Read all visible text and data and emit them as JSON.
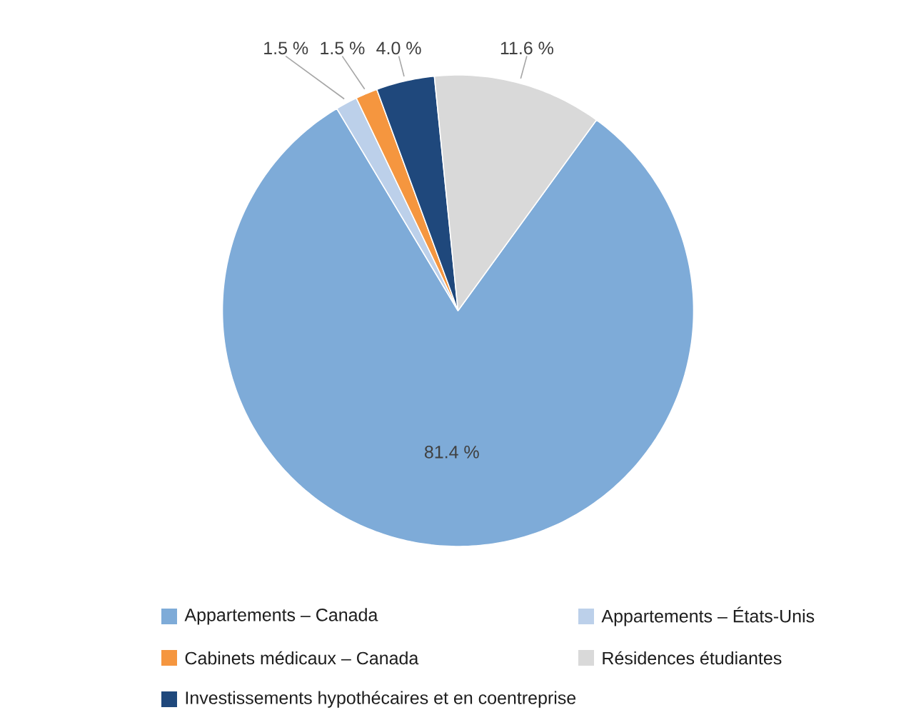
{
  "chart_data": {
    "type": "pie",
    "categories": [
      "Appartements – Canada",
      "Appartements – États-Unis",
      "Cabinets médicaux – Canada",
      "Investissements hypothécaires et en coentreprise",
      "Résidences étudiantes"
    ],
    "values": [
      81.4,
      1.5,
      1.5,
      4.0,
      11.6
    ],
    "value_labels": [
      "81.4 %",
      "1.5 %",
      "1.5 %",
      "4.0 %",
      "11.6 %"
    ],
    "colors": [
      "#7eabd8",
      "#bcd0ea",
      "#f5963f",
      "#1f487c",
      "#d9d9d9"
    ],
    "legend": "bottom"
  }
}
